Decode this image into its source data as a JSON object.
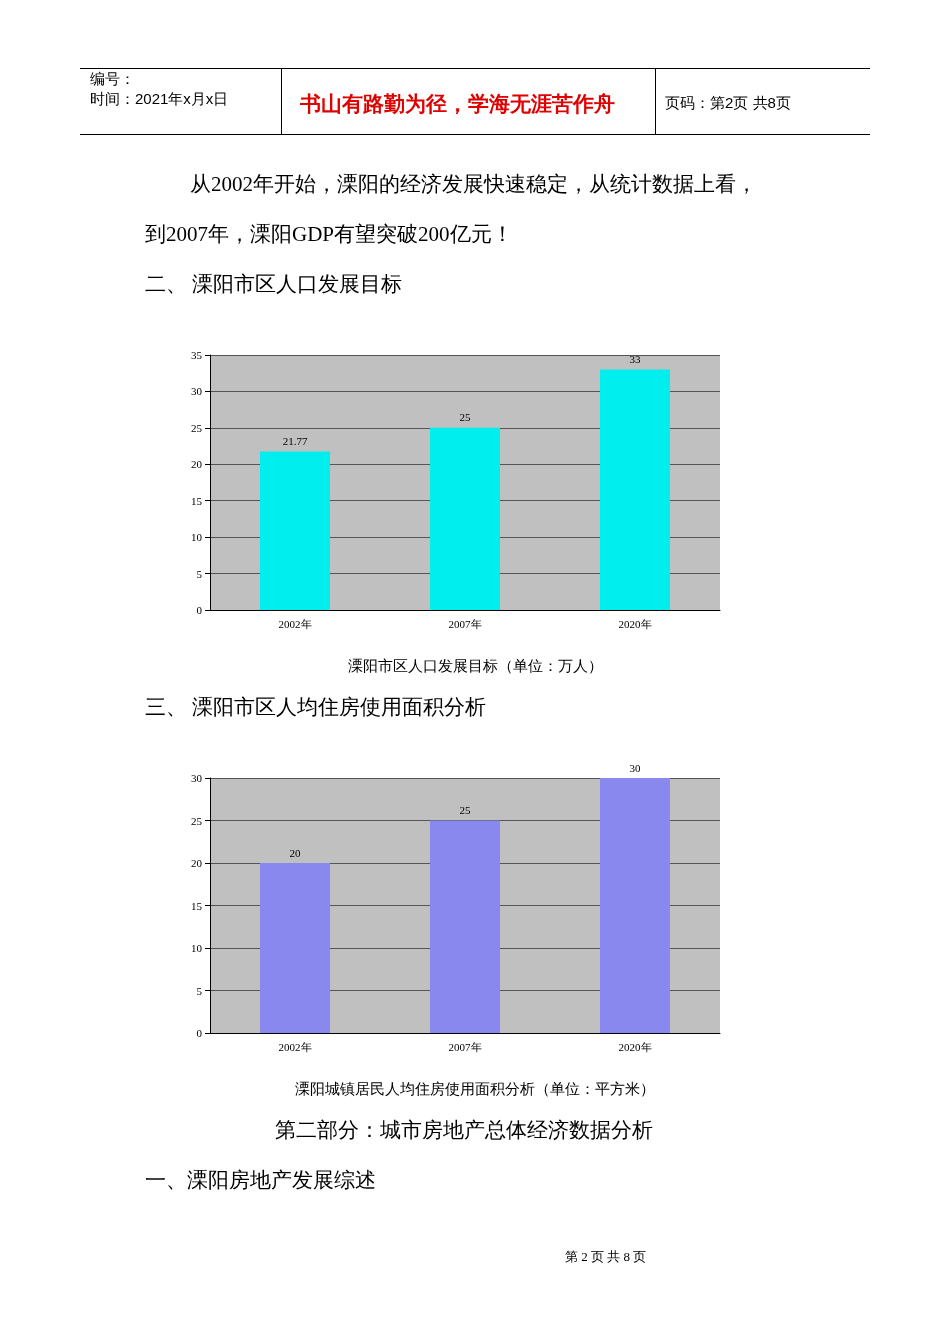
{
  "chart_data": [
    {
      "type": "bar",
      "title": "溧阳市区人口发展目标（单位：万人）",
      "annotations": [
        "编号：",
        "时间：2021年x月x日",
        "书山有路勤为径，学海无涯苦作舟",
        "页码：第2页 共8页",
        "从2002年开始，溧阳的经济发展快速稳定，从统计数据上看，",
        "到2007年，溧阳GDP有望突破200亿元！",
        "二、  溧阳市区人口发展目标"
      ],
      "categories": [
        "2002年",
        "2007年",
        "2020年"
      ],
      "values": [
        21.77,
        25,
        33
      ],
      "color": "#00eeee",
      "ylim": [
        0,
        35
      ],
      "yticks": [
        0,
        5,
        10,
        15,
        20,
        25,
        30,
        35
      ],
      "grid": "y",
      "data_labels": true
    },
    {
      "type": "bar",
      "title": "溧阳城镇居民人均住房使用面积分析（单位：平方米）",
      "annotations": [
        "三、  溧阳市区人均住房使用面积分析",
        "第二部分：城市房地产总体经济数据分析",
        "一、溧阳房地产发展综述",
        "第 2 页 共 8 页"
      ],
      "categories": [
        "2002年",
        "2007年",
        "2020年"
      ],
      "values": [
        20,
        25,
        30
      ],
      "color": "#8888ee",
      "ylim": [
        0,
        30
      ],
      "yticks": [
        0,
        5,
        10,
        15,
        20,
        25,
        30
      ],
      "grid": "y",
      "data_labels": true
    }
  ]
}
